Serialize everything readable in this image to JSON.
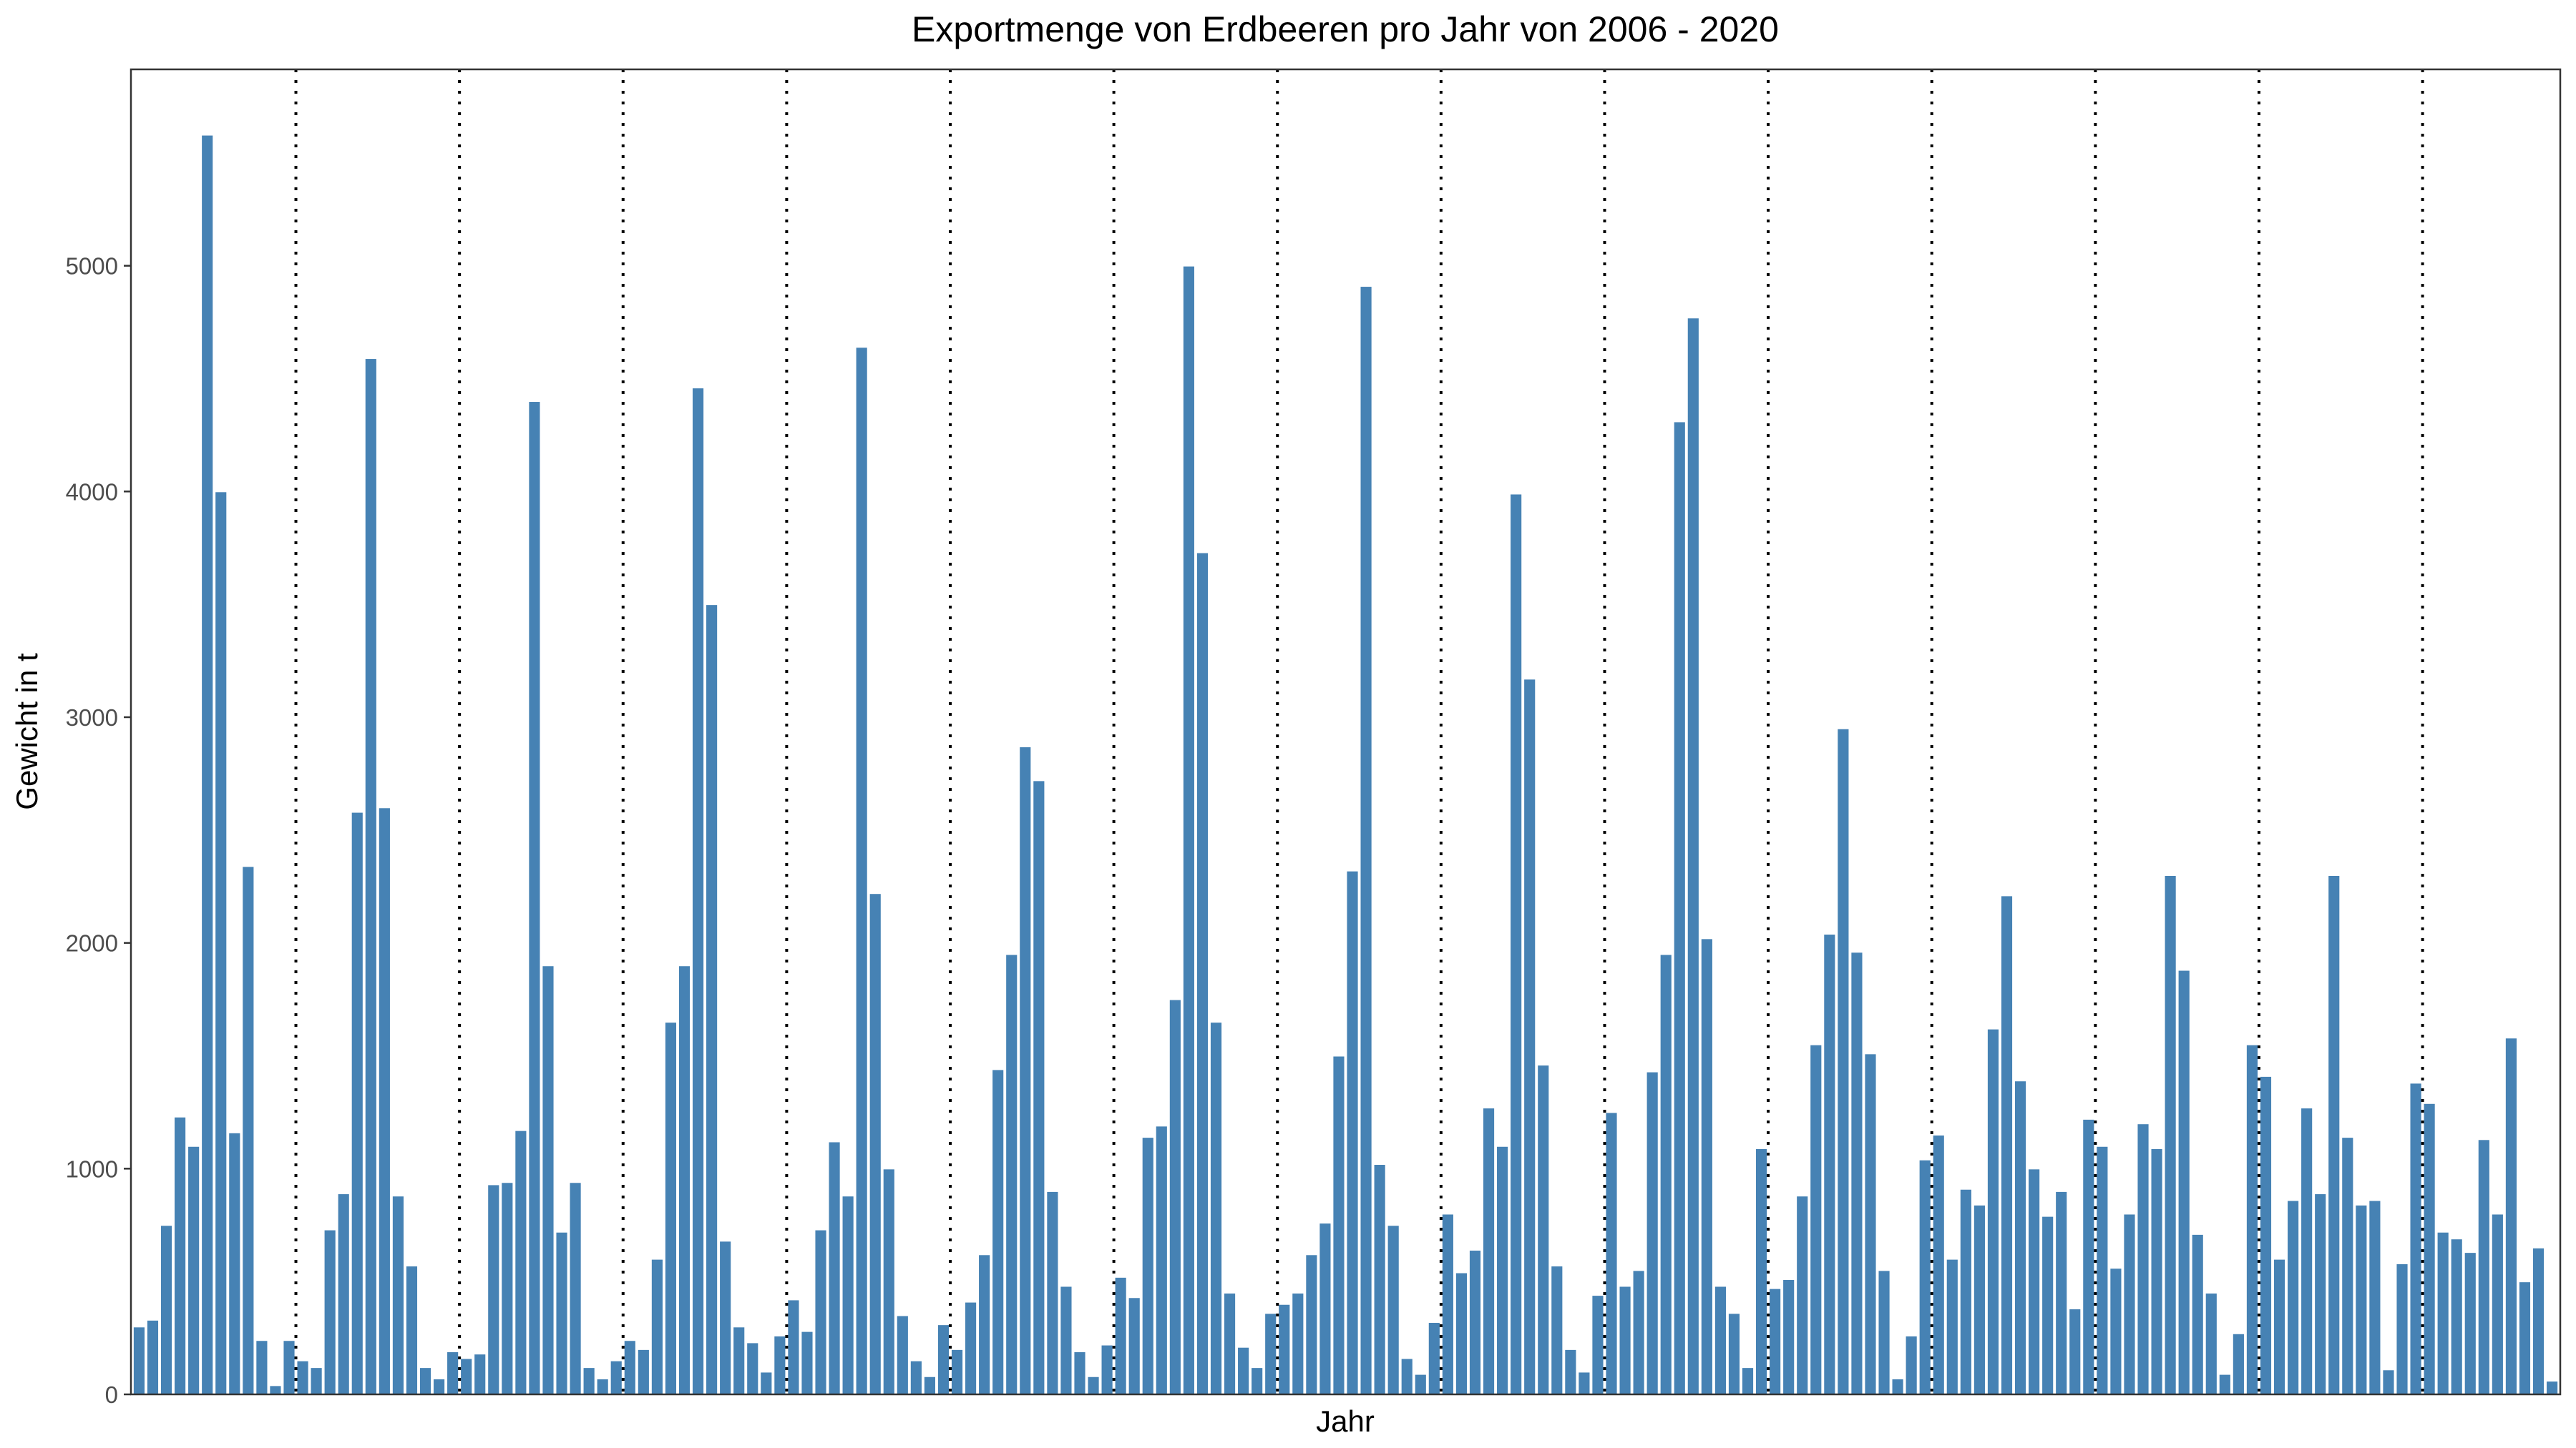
{
  "chart_data": {
    "type": "bar",
    "title": "Exportmenge von Erdbeeren pro Jahr von 2006 - 2020",
    "xlabel": "Jahr",
    "ylabel": "Gewicht in t",
    "ylim": [
      0,
      5870
    ],
    "yticks": [
      0,
      1000,
      2000,
      3000,
      4000,
      5000
    ],
    "x_tick_labels_shown": false,
    "bar_color": "#4682b4",
    "bar_outline_color": "#ffffff",
    "separator_color": "#000000",
    "separator_style": "dotted",
    "separators_after_bar": [
      12,
      24,
      36,
      48,
      60,
      72,
      84,
      96,
      108,
      120,
      132,
      144,
      156,
      168
    ],
    "grid": false,
    "legend": "none",
    "values": [
      300,
      330,
      750,
      1230,
      1100,
      5580,
      4000,
      1160,
      2340,
      240,
      40,
      240,
      150,
      120,
      730,
      890,
      2580,
      4590,
      2600,
      880,
      570,
      120,
      70,
      190,
      160,
      180,
      930,
      940,
      1170,
      4400,
      1900,
      720,
      940,
      120,
      70,
      150,
      240,
      200,
      600,
      1650,
      1900,
      4460,
      3500,
      680,
      300,
      230,
      100,
      260,
      420,
      280,
      730,
      1120,
      880,
      4640,
      2220,
      1000,
      350,
      150,
      80,
      310,
      200,
      410,
      620,
      1440,
      1950,
      2870,
      2720,
      900,
      480,
      190,
      80,
      220,
      520,
      430,
      1140,
      1190,
      1750,
      5000,
      3730,
      1650,
      450,
      210,
      120,
      360,
      400,
      450,
      620,
      760,
      1500,
      2320,
      4910,
      1020,
      750,
      160,
      90,
      320,
      800,
      540,
      640,
      1270,
      1100,
      3990,
      3170,
      1460,
      570,
      200,
      100,
      440,
      1250,
      480,
      550,
      1430,
      1950,
      4310,
      4770,
      2020,
      480,
      360,
      120,
      1090,
      470,
      510,
      880,
      1550,
      2040,
      2950,
      1960,
      1510,
      550,
      70,
      260,
      1040,
      1150,
      600,
      910,
      840,
      1620,
      2210,
      1390,
      1000,
      790,
      900,
      380,
      1220,
      1100,
      560,
      800,
      1200,
      1090,
      2300,
      1880,
      710,
      450,
      90,
      270,
      1550,
      1410,
      600,
      860,
      1270,
      890,
      2300,
      1140,
      840,
      860,
      110,
      580,
      1380,
      1290,
      720,
      690,
      630,
      1130,
      800,
      1580,
      500,
      650,
      60
    ]
  }
}
